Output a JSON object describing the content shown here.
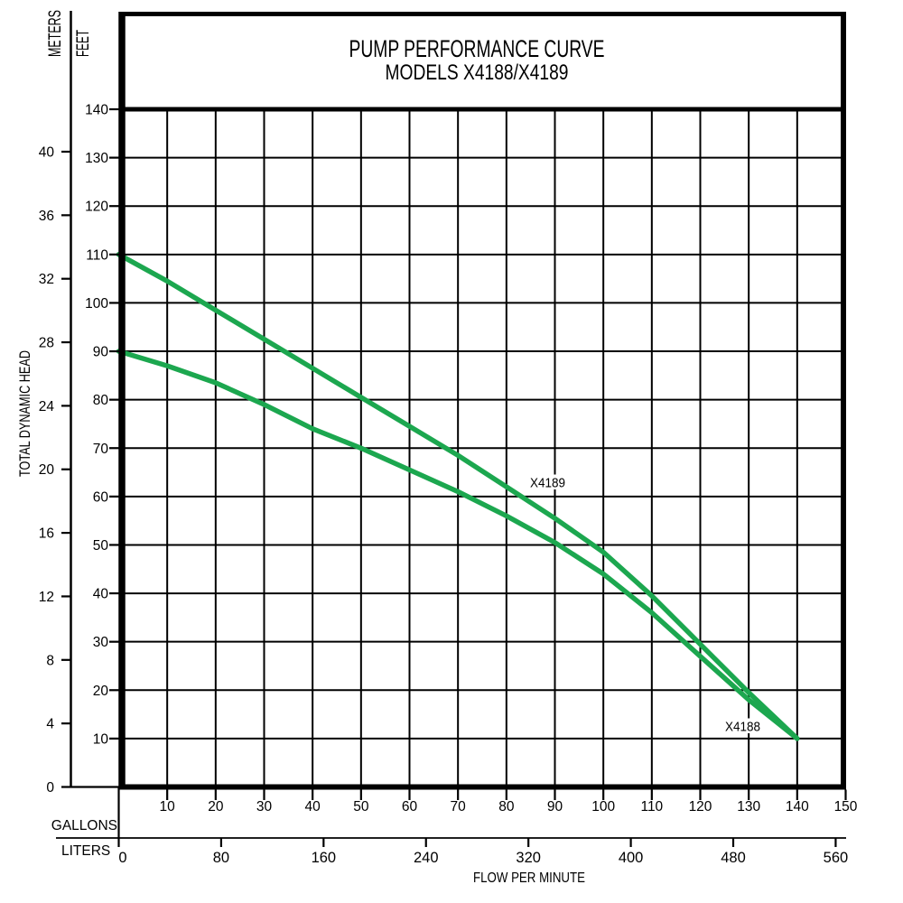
{
  "chart_data": {
    "type": "line",
    "title": "PUMP PERFORMANCE CURVE",
    "subtitle": "MODELS X4188/X4189",
    "grid": {
      "visible": true,
      "x_step_gallons": 10,
      "y_step_feet": 10
    },
    "x_axis": {
      "title": "FLOW PER MINUTE",
      "primary": {
        "unit_label": "GALLONS",
        "range": [
          0,
          150
        ],
        "ticks": [
          10,
          20,
          30,
          40,
          50,
          60,
          70,
          80,
          90,
          100,
          110,
          120,
          130,
          140,
          150
        ]
      },
      "secondary": {
        "unit_label": "LITERS",
        "ticks": [
          0,
          80,
          160,
          240,
          320,
          400,
          480,
          560
        ],
        "gallons_per_liter": 0.264172
      }
    },
    "y_axis": {
      "title": "TOTAL DYNAMIC HEAD",
      "primary": {
        "unit_label": "FEET",
        "range": [
          0,
          140
        ],
        "ticks": [
          10,
          20,
          30,
          40,
          50,
          60,
          70,
          80,
          90,
          100,
          110,
          120,
          130,
          140
        ]
      },
      "secondary": {
        "unit_label": "METERS",
        "ticks": [
          0,
          4,
          8,
          12,
          16,
          20,
          24,
          28,
          32,
          36,
          40
        ],
        "feet_per_meter": 3.28084
      }
    },
    "series": [
      {
        "name": "X4189",
        "color": "#1CA74F",
        "label_at": {
          "gpm": 88.5,
          "feet": 63
        },
        "points_gpm_feet": [
          [
            0,
            110
          ],
          [
            10,
            104.5
          ],
          [
            20,
            98.5
          ],
          [
            30,
            92.5
          ],
          [
            40,
            86.5
          ],
          [
            50,
            80.5
          ],
          [
            60,
            74.5
          ],
          [
            70,
            68.5
          ],
          [
            80,
            62
          ],
          [
            90,
            55.5
          ],
          [
            100,
            48.5
          ],
          [
            110,
            39.5
          ],
          [
            120,
            29.5
          ],
          [
            130,
            19.5
          ],
          [
            140,
            10
          ]
        ]
      },
      {
        "name": "X4188",
        "color": "#1CA74F",
        "label_at": {
          "gpm": 128.7,
          "feet": 12.6
        },
        "points_gpm_feet": [
          [
            0,
            90
          ],
          [
            10,
            87
          ],
          [
            20,
            83.5
          ],
          [
            30,
            79
          ],
          [
            40,
            74
          ],
          [
            50,
            70
          ],
          [
            60,
            65.5
          ],
          [
            70,
            61
          ],
          [
            80,
            56
          ],
          [
            90,
            50.5
          ],
          [
            100,
            44
          ],
          [
            110,
            36
          ],
          [
            120,
            27
          ],
          [
            130,
            18
          ],
          [
            140,
            10
          ]
        ]
      }
    ],
    "colors": {
      "ink": "#000000",
      "curve": "#1CA74F",
      "background": "#ffffff"
    }
  }
}
